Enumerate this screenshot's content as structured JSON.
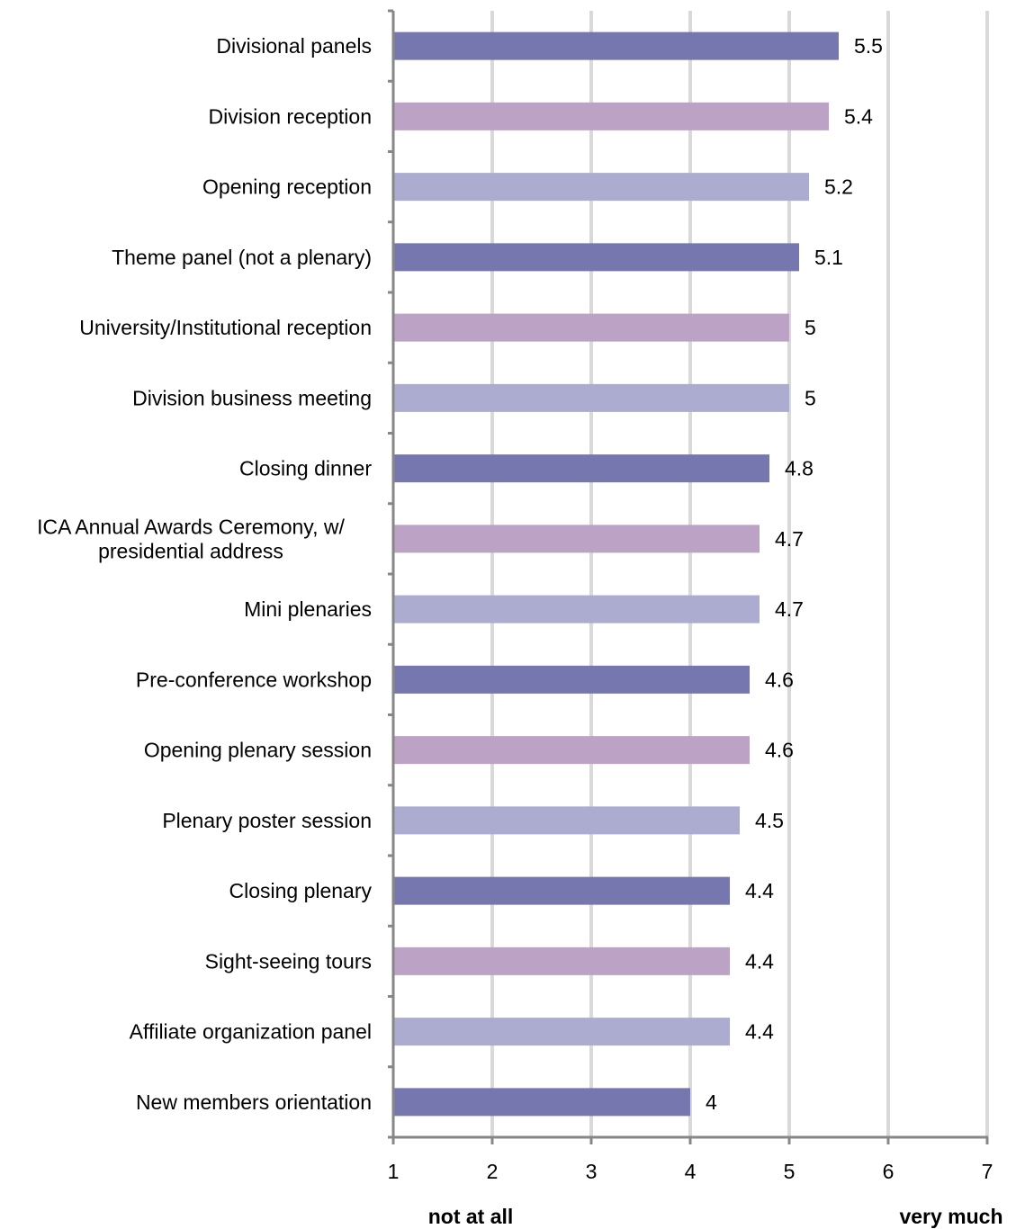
{
  "chart_data": {
    "type": "bar",
    "orientation": "horizontal",
    "categories": [
      "Divisional panels",
      "Division reception",
      "Opening reception",
      "Theme panel (not a plenary)",
      "University/Institutional reception",
      "Division business meeting",
      "Closing dinner",
      "ICA Annual Awards Ceremony, w/ presidential address",
      "Mini plenaries",
      "Pre-conference workshop",
      "Opening plenary session",
      "Plenary poster session",
      "Closing plenary",
      "Sight-seeing tours",
      "Affiliate organization panel",
      "New members orientation"
    ],
    "category_lines": [
      [
        "Divisional panels"
      ],
      [
        "Division reception"
      ],
      [
        "Opening reception"
      ],
      [
        "Theme panel (not a plenary)"
      ],
      [
        "University/Institutional reception"
      ],
      [
        "Division business meeting"
      ],
      [
        "Closing dinner"
      ],
      [
        "ICA Annual Awards Ceremony, w/",
        "presidential address"
      ],
      [
        "Mini plenaries"
      ],
      [
        "Pre-conference workshop"
      ],
      [
        "Opening plenary session"
      ],
      [
        "Plenary poster session"
      ],
      [
        "Closing plenary"
      ],
      [
        "Sight-seeing tours"
      ],
      [
        "Affiliate organization panel"
      ],
      [
        "New members orientation"
      ]
    ],
    "values": [
      5.5,
      5.4,
      5.2,
      5.1,
      5,
      5,
      4.8,
      4.7,
      4.7,
      4.6,
      4.6,
      4.5,
      4.4,
      4.4,
      4.4,
      4
    ],
    "value_labels": [
      "5.5",
      "5.4",
      "5.2",
      "5.1",
      "5",
      "5",
      "4.8",
      "4.7",
      "4.7",
      "4.6",
      "4.6",
      "4.5",
      "4.4",
      "4.4",
      "4.4",
      "4"
    ],
    "bar_colors": [
      "#7577ae",
      "#bca2c5",
      "#abacd0"
    ],
    "xlim": [
      1,
      7
    ],
    "xticks": [
      "1",
      "2",
      "3",
      "4",
      "5",
      "6",
      "7"
    ],
    "x_anchor_labels": {
      "low": "not at all",
      "high": "very much"
    },
    "grid": true,
    "grid_color": "#d9d9d9",
    "axis_color": "#878787",
    "legend": "none"
  }
}
